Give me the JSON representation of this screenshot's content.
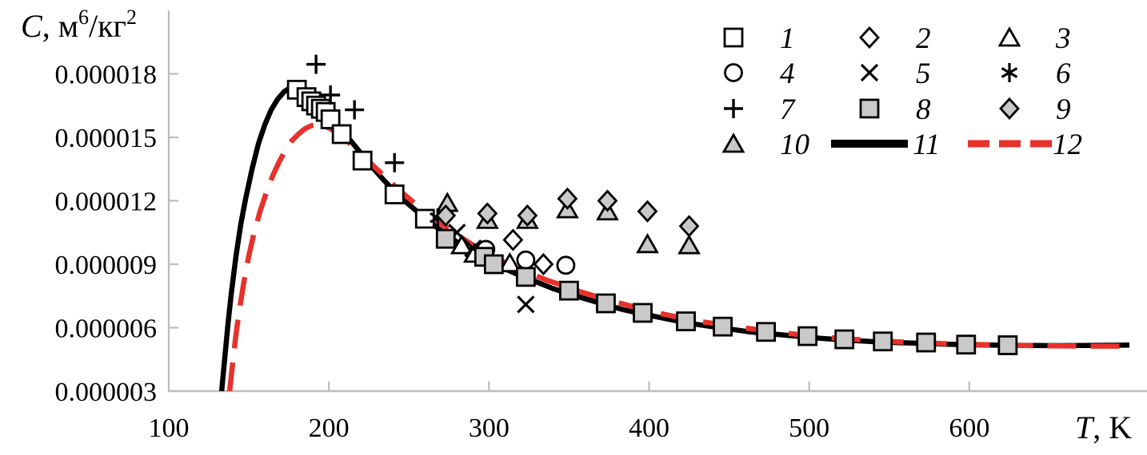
{
  "chart_data": {
    "type": "scatter",
    "title": "",
    "y_axis": {
      "title_parts": [
        {
          "t": "C",
          "italic": true
        },
        {
          "t": ", м"
        },
        {
          "t": "6",
          "sup": true
        },
        {
          "t": "/кг"
        },
        {
          "t": "2",
          "sup": true
        }
      ],
      "tick_values": [
        3,
        6,
        9,
        12,
        15,
        18
      ],
      "tick_labels": [
        "0.000003",
        "0.000006",
        "0.000009",
        "0.000012",
        "0.000015",
        "0.000018"
      ],
      "range": [
        3,
        21
      ],
      "unit_scale": 1e-06,
      "grid": false
    },
    "x_axis": {
      "title_parts": [
        {
          "t": "T",
          "italic": true
        },
        {
          "t": ", K"
        }
      ],
      "tick_values": [
        100,
        200,
        300,
        400,
        500,
        600
      ],
      "tick_labels": [
        "100",
        "200",
        "300",
        "400",
        "500",
        "600"
      ],
      "range": [
        100,
        710
      ],
      "grid": false
    },
    "series": [
      {
        "id": "1",
        "marker": "square-open",
        "points": [
          [
            180,
            17.25
          ],
          [
            186,
            16.9
          ],
          [
            189,
            16.7
          ],
          [
            192,
            16.5
          ],
          [
            195,
            16.35
          ],
          [
            198,
            16.2
          ],
          [
            201,
            15.85
          ],
          [
            208,
            15.15
          ],
          [
            221,
            13.9
          ],
          [
            241,
            12.3
          ],
          [
            260,
            11.15
          ]
        ]
      },
      {
        "id": "2",
        "marker": "diamond-open",
        "points": [
          [
            315,
            10.15
          ],
          [
            334,
            9.0
          ]
        ]
      },
      {
        "id": "3",
        "marker": "triangle-open",
        "points": [
          [
            283,
            9.9
          ],
          [
            291,
            9.5
          ],
          [
            313,
            9.05
          ]
        ]
      },
      {
        "id": "4",
        "marker": "circle-open",
        "points": [
          [
            298,
            9.7
          ],
          [
            323,
            9.2
          ],
          [
            348,
            8.95
          ]
        ]
      },
      {
        "id": "5",
        "marker": "x-cross",
        "points": [
          [
            280,
            10.5
          ],
          [
            290,
            9.75
          ],
          [
            323,
            7.1
          ]
        ]
      },
      {
        "id": "6",
        "marker": "asterisk",
        "points": [
          [
            268,
            11.2
          ]
        ]
      },
      {
        "id": "7",
        "marker": "plus-cross",
        "points": [
          [
            192,
            18.45
          ],
          [
            201,
            17.0
          ],
          [
            216,
            16.3
          ],
          [
            241,
            13.8
          ]
        ]
      },
      {
        "id": "10",
        "marker": "triangle-fill",
        "points": [
          [
            274,
            11.9
          ],
          [
            299,
            11.1
          ],
          [
            324,
            11.1
          ],
          [
            349,
            11.6
          ],
          [
            374,
            11.5
          ],
          [
            399,
            9.95
          ],
          [
            425,
            9.9
          ]
        ]
      },
      {
        "id": "9",
        "marker": "diamond-fill",
        "points": [
          [
            273,
            11.3
          ],
          [
            299,
            11.4
          ],
          [
            324,
            11.3
          ],
          [
            349,
            12.1
          ],
          [
            374,
            12.0
          ],
          [
            399,
            11.5
          ],
          [
            425,
            10.8
          ]
        ]
      },
      {
        "id": "8",
        "marker": "square-fill",
        "points": [
          [
            273,
            10.2
          ],
          [
            297,
            9.35
          ],
          [
            303,
            9.0
          ],
          [
            323,
            8.4
          ],
          [
            350,
            7.75
          ],
          [
            373,
            7.15
          ],
          [
            396,
            6.7
          ],
          [
            423,
            6.3
          ],
          [
            446,
            6.05
          ],
          [
            473,
            5.8
          ],
          [
            499,
            5.6
          ],
          [
            522,
            5.45
          ],
          [
            546,
            5.35
          ],
          [
            573,
            5.3
          ],
          [
            598,
            5.2
          ],
          [
            624,
            5.17
          ]
        ]
      }
    ],
    "curves": [
      {
        "id": "11",
        "style": "solid",
        "color": "#000000",
        "points": [
          [
            133,
            3.0
          ],
          [
            135,
            4.6
          ],
          [
            137,
            6.2
          ],
          [
            139,
            7.6
          ],
          [
            142,
            9.4
          ],
          [
            145,
            10.9
          ],
          [
            148,
            12.1
          ],
          [
            152,
            13.5
          ],
          [
            156,
            14.7
          ],
          [
            160,
            15.6
          ],
          [
            164,
            16.3
          ],
          [
            168,
            16.8
          ],
          [
            172,
            17.15
          ],
          [
            176,
            17.35
          ],
          [
            179,
            17.42
          ],
          [
            184,
            17.33
          ],
          [
            188,
            17.15
          ],
          [
            193,
            16.8
          ],
          [
            198,
            16.35
          ],
          [
            203,
            15.85
          ],
          [
            208,
            15.35
          ],
          [
            214,
            14.8
          ],
          [
            220,
            14.25
          ],
          [
            227,
            13.6
          ],
          [
            234,
            13.0
          ],
          [
            241,
            12.45
          ],
          [
            248,
            11.95
          ],
          [
            255,
            11.5
          ],
          [
            262,
            11.05
          ],
          [
            270,
            10.6
          ],
          [
            278,
            10.15
          ],
          [
            286,
            9.75
          ],
          [
            294,
            9.4
          ],
          [
            302,
            9.1
          ],
          [
            311,
            8.75
          ],
          [
            320,
            8.45
          ],
          [
            330,
            8.15
          ],
          [
            340,
            7.85
          ],
          [
            350,
            7.6
          ],
          [
            361,
            7.35
          ],
          [
            372,
            7.1
          ],
          [
            384,
            6.85
          ],
          [
            396,
            6.65
          ],
          [
            409,
            6.45
          ],
          [
            422,
            6.25
          ],
          [
            435,
            6.1
          ],
          [
            449,
            5.95
          ],
          [
            463,
            5.8
          ],
          [
            477,
            5.7
          ],
          [
            492,
            5.6
          ],
          [
            507,
            5.5
          ],
          [
            522,
            5.42
          ],
          [
            538,
            5.35
          ],
          [
            554,
            5.3
          ],
          [
            570,
            5.26
          ],
          [
            587,
            5.22
          ],
          [
            604,
            5.19
          ],
          [
            621,
            5.17
          ],
          [
            638,
            5.16
          ],
          [
            656,
            5.15
          ],
          [
            674,
            5.16
          ],
          [
            692,
            5.17
          ],
          [
            700,
            5.18
          ]
        ]
      },
      {
        "id": "12",
        "style": "dashed",
        "color": "#e8312b",
        "points": [
          [
            138,
            3.0
          ],
          [
            140,
            4.4
          ],
          [
            142,
            5.7
          ],
          [
            144,
            6.8
          ],
          [
            147,
            8.2
          ],
          [
            150,
            9.4
          ],
          [
            153,
            10.4
          ],
          [
            157,
            11.5
          ],
          [
            161,
            12.4
          ],
          [
            165,
            13.2
          ],
          [
            169,
            13.85
          ],
          [
            173,
            14.4
          ],
          [
            177,
            14.85
          ],
          [
            181,
            15.15
          ],
          [
            185,
            15.4
          ],
          [
            189,
            15.55
          ],
          [
            193,
            15.6
          ],
          [
            197,
            15.55
          ],
          [
            201,
            15.4
          ],
          [
            206,
            15.15
          ],
          [
            211,
            14.85
          ],
          [
            217,
            14.45
          ],
          [
            223,
            14.0
          ],
          [
            230,
            13.5
          ],
          [
            237,
            13.0
          ],
          [
            244,
            12.5
          ],
          [
            251,
            12.05
          ],
          [
            258,
            11.6
          ],
          [
            266,
            11.15
          ],
          [
            274,
            10.7
          ],
          [
            282,
            10.3
          ],
          [
            290,
            9.9
          ],
          [
            298,
            9.55
          ],
          [
            307,
            9.2
          ],
          [
            316,
            8.85
          ],
          [
            326,
            8.55
          ],
          [
            336,
            8.25
          ],
          [
            346,
            8.0
          ],
          [
            357,
            7.7
          ],
          [
            368,
            7.45
          ],
          [
            380,
            7.2
          ],
          [
            392,
            6.95
          ],
          [
            405,
            6.7
          ],
          [
            418,
            6.5
          ],
          [
            431,
            6.3
          ],
          [
            445,
            6.15
          ],
          [
            459,
            6.0
          ],
          [
            473,
            5.85
          ],
          [
            488,
            5.72
          ],
          [
            503,
            5.6
          ],
          [
            518,
            5.5
          ],
          [
            534,
            5.42
          ],
          [
            550,
            5.35
          ],
          [
            566,
            5.3
          ],
          [
            583,
            5.25
          ],
          [
            600,
            5.21
          ],
          [
            617,
            5.18
          ],
          [
            634,
            5.16
          ],
          [
            652,
            5.14
          ],
          [
            670,
            5.13
          ],
          [
            688,
            5.13
          ],
          [
            700,
            5.13
          ]
        ]
      }
    ],
    "legend": {
      "position": "top-right",
      "entries": [
        {
          "label": "1",
          "marker": "square-open"
        },
        {
          "label": "2",
          "marker": "diamond-open"
        },
        {
          "label": "3",
          "marker": "triangle-open"
        },
        {
          "label": "4",
          "marker": "circle-open"
        },
        {
          "label": "5",
          "marker": "x-cross"
        },
        {
          "label": "6",
          "marker": "asterisk"
        },
        {
          "label": "7",
          "marker": "plus-cross"
        },
        {
          "label": "8",
          "marker": "square-fill"
        },
        {
          "label": "9",
          "marker": "diamond-fill"
        },
        {
          "label": "10",
          "marker": "triangle-fill"
        },
        {
          "label": "11",
          "marker": "line-solid"
        },
        {
          "label": "12",
          "marker": "line-dashed"
        }
      ]
    }
  },
  "colors": {
    "curve_solid": "#000000",
    "curve_dashed": "#e8312b",
    "marker_stroke": "#000000",
    "marker_fill_gray": "#c9c9c9",
    "marker_fill_open": "#ffffff",
    "axis_line": "#bdbdbd",
    "text": "#000000",
    "background": "#ffffff"
  }
}
